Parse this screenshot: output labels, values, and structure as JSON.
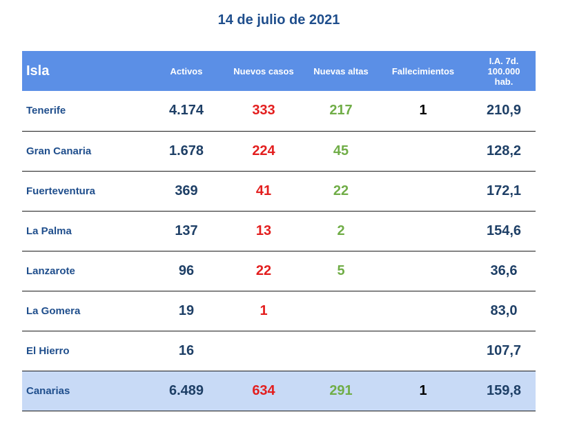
{
  "title": "14 de julio de 2021",
  "columns": {
    "isla": "Isla",
    "activos": "Activos",
    "nuevos_casos": "Nuevos casos",
    "nuevas_altas": "Nuevas altas",
    "fallecimientos": "Fallecimientos",
    "ia_line1": "I.A. 7d.",
    "ia_line2": "100.000",
    "ia_line3": "hab."
  },
  "rows": [
    {
      "isla": "Tenerife",
      "activos": "4.174",
      "nuevos_casos": "333",
      "nuevas_altas": "217",
      "fallecimientos": "1",
      "ia": "210,9"
    },
    {
      "isla": "Gran Canaria",
      "activos": "1.678",
      "nuevos_casos": "224",
      "nuevas_altas": "45",
      "fallecimientos": "",
      "ia": "128,2"
    },
    {
      "isla": "Fuerteventura",
      "activos": "369",
      "nuevos_casos": "41",
      "nuevas_altas": "22",
      "fallecimientos": "",
      "ia": "172,1"
    },
    {
      "isla": "La Palma",
      "activos": "137",
      "nuevos_casos": "13",
      "nuevas_altas": "2",
      "fallecimientos": "",
      "ia": "154,6"
    },
    {
      "isla": "Lanzarote",
      "activos": "96",
      "nuevos_casos": "22",
      "nuevas_altas": "5",
      "fallecimientos": "",
      "ia": "36,6"
    },
    {
      "isla": "La Gomera",
      "activos": "19",
      "nuevos_casos": "1",
      "nuevas_altas": "",
      "fallecimientos": "",
      "ia": "83,0"
    },
    {
      "isla": "El Hierro",
      "activos": "16",
      "nuevos_casos": "",
      "nuevas_altas": "",
      "fallecimientos": "",
      "ia": "107,7"
    }
  ],
  "total": {
    "isla": "Canarias",
    "activos": "6.489",
    "nuevos_casos": "634",
    "nuevas_altas": "291",
    "fallecimientos": "1",
    "ia": "159,8"
  },
  "colors": {
    "header_bg": "#5b8fe6",
    "total_bg": "#c8daf6",
    "title": "#1f4e8c",
    "nuevos_casos": "#e31e1e",
    "nuevas_altas": "#70ad47"
  }
}
